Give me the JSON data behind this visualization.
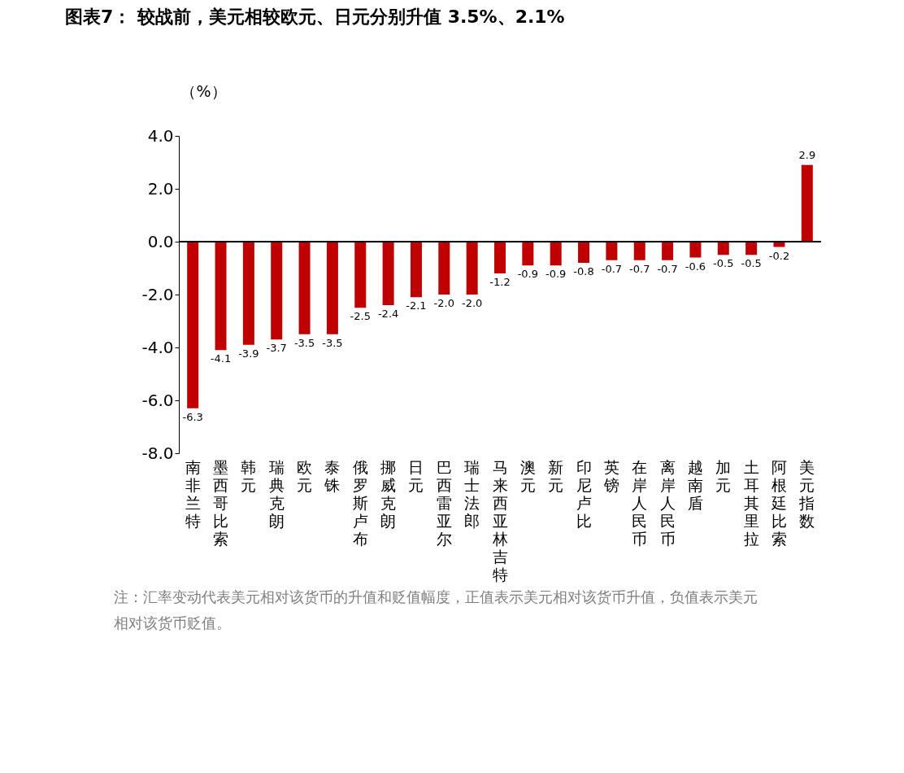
{
  "chart_data": {
    "type": "bar",
    "title": "图表7： 较战前，美元相较欧元、日元分别升值 3.5%、2.1%",
    "ylabel": "（%）",
    "categories": [
      "南非兰特",
      "墨西哥比索",
      "韩元",
      "瑞典克朗",
      "欧元",
      "泰铢",
      "俄罗斯卢布",
      "挪威克朗",
      "日元",
      "巴西雷亚尔",
      "瑞士法郎",
      "马来西亚林吉特",
      "澳元",
      "新元",
      "印尼卢比",
      "英镑",
      "在岸人民币",
      "离岸人民币",
      "越南盾",
      "加元",
      "土耳其里拉",
      "阿根廷比索",
      "美元指数"
    ],
    "values": [
      -6.3,
      -4.1,
      -3.9,
      -3.7,
      -3.5,
      -3.5,
      -2.5,
      -2.4,
      -2.1,
      -2.0,
      -2.0,
      -1.2,
      -0.9,
      -0.9,
      -0.8,
      -0.7,
      -0.7,
      -0.7,
      -0.6,
      -0.5,
      -0.5,
      -0.2,
      2.9
    ],
    "color": "#c00000",
    "ylim": [
      -8,
      4
    ],
    "yticks": [
      {
        "value": -8,
        "label": "-8.0"
      },
      {
        "value": -6,
        "label": "-6.0"
      },
      {
        "value": -4,
        "label": "-4.0"
      },
      {
        "value": -2,
        "label": "-2.0"
      },
      {
        "value": 0,
        "label": "0.0"
      },
      {
        "value": 2,
        "label": "2.0"
      },
      {
        "value": 4,
        "label": "4.0"
      }
    ],
    "value_labels": [
      "-6.3",
      "-4.1",
      "-3.9",
      "-3.7",
      "-3.5",
      "-3.5",
      "-2.5",
      "-2.4",
      "-2.1",
      "-2.0",
      "-2.0",
      "-1.2",
      "-0.9",
      "-0.9",
      "-0.8",
      "-0.7",
      "-0.7",
      "-0.7",
      "-0.6",
      "-0.5",
      "-0.5",
      "-0.2",
      "2.9"
    ],
    "annotations": [
      "注：汇率变动代表美元相对该货币的升值和贬值幅度，正值表示美元相对该货币升值，负值表示美元相对该货币贬值。"
    ]
  }
}
